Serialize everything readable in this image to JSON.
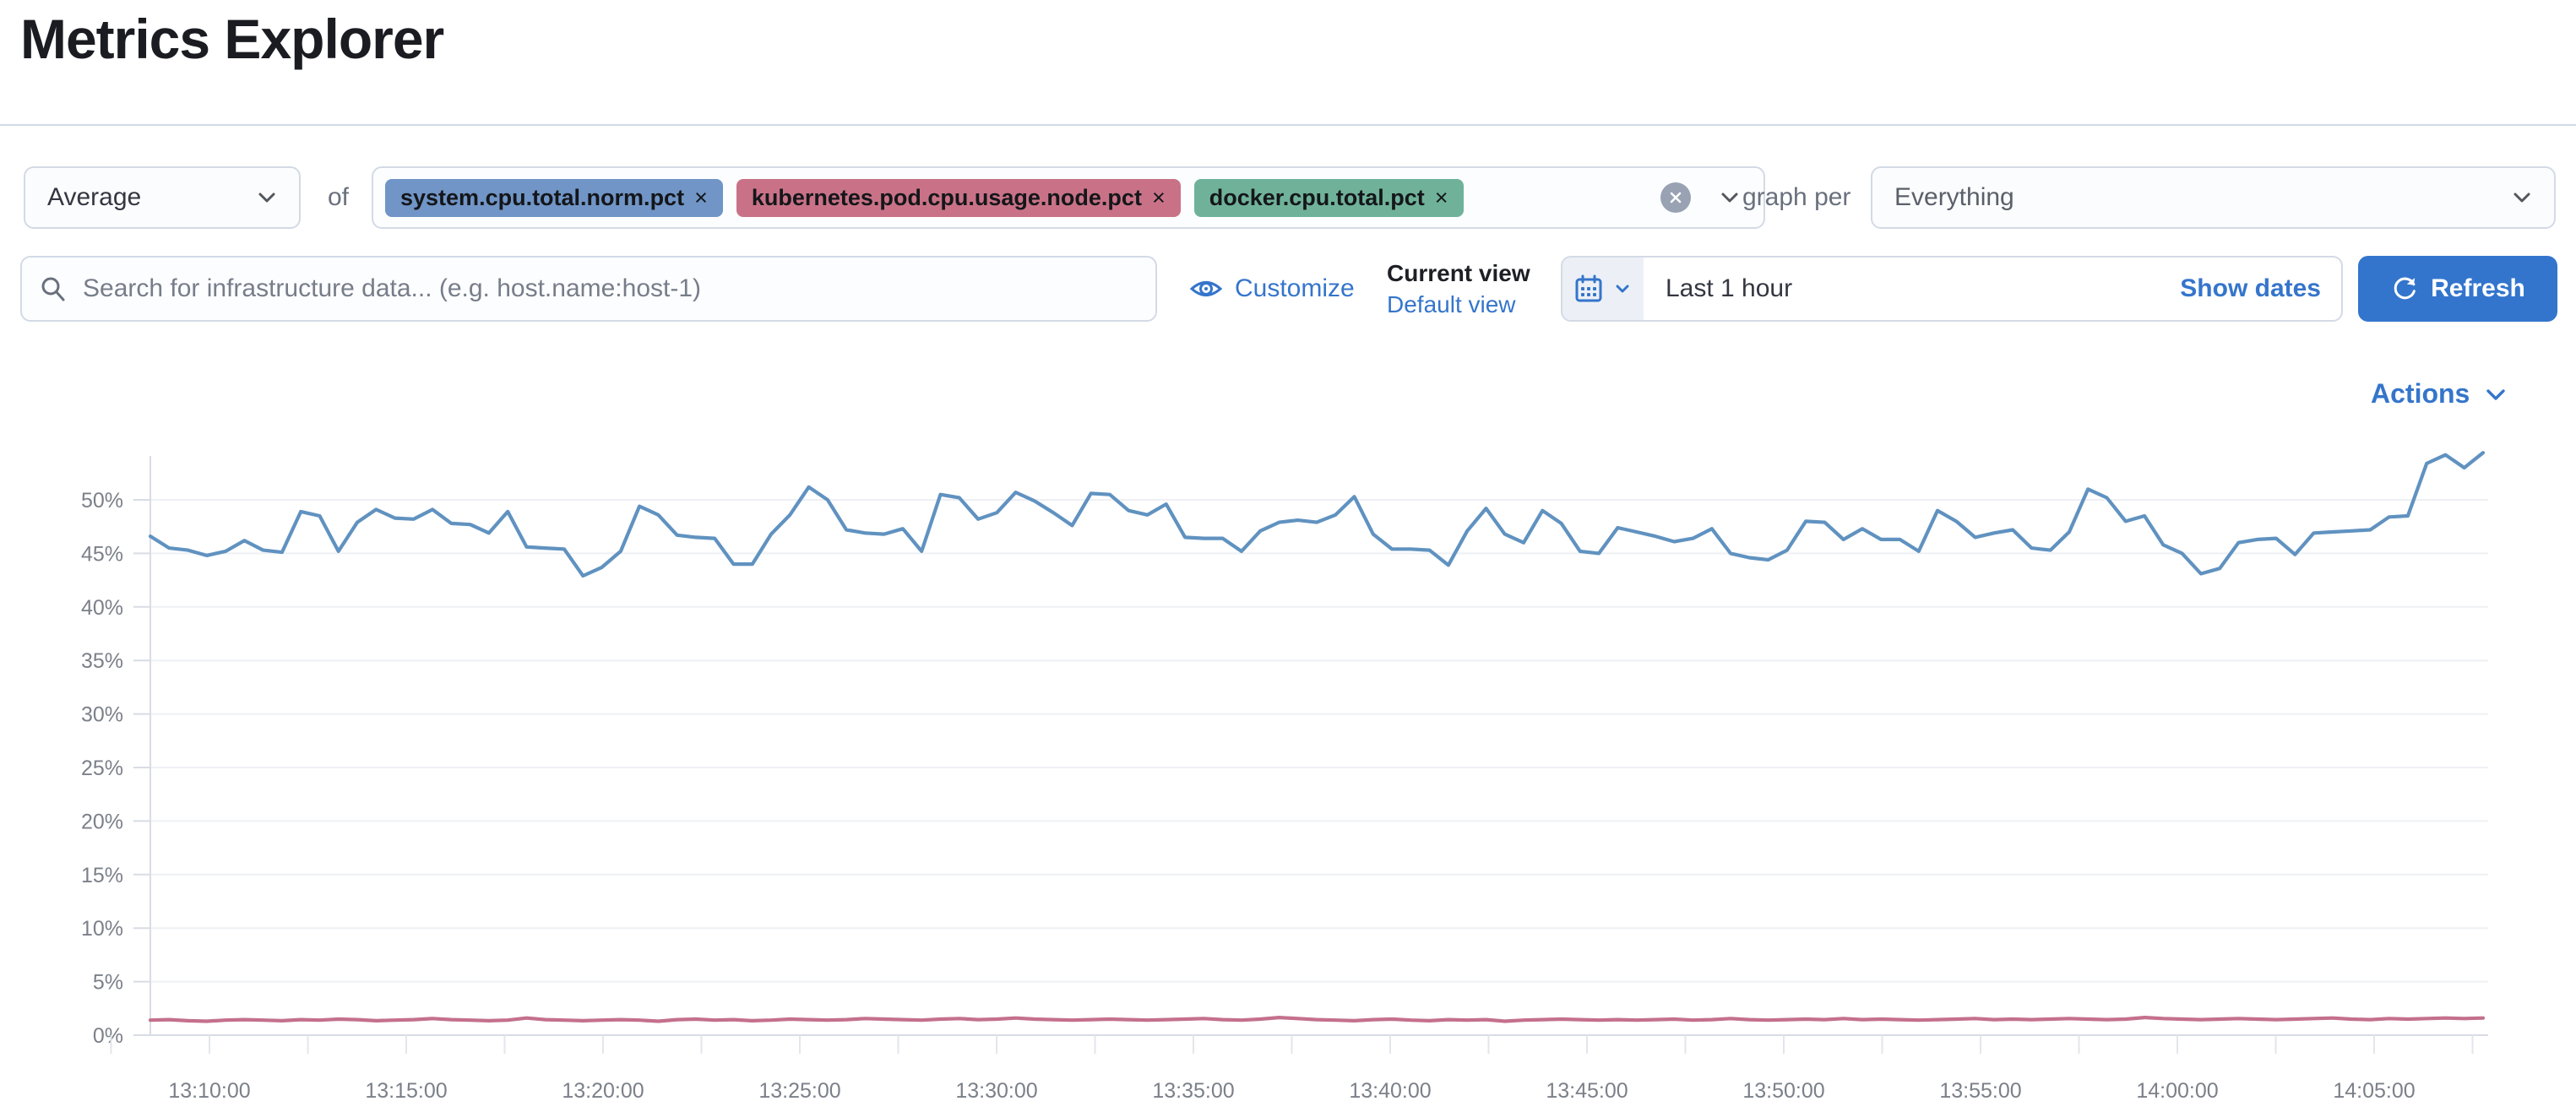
{
  "page": {
    "title": "Metrics Explorer"
  },
  "toolbar": {
    "aggregation": {
      "selected": "Average",
      "of_label": "of",
      "remove_symbol": "×",
      "metrics": [
        {
          "label": "system.cpu.total.norm.pct",
          "color": "#7095c6"
        },
        {
          "label": "kubernetes.pod.cpu.usage.node.pct",
          "color": "#c97287"
        },
        {
          "label": "docker.cpu.total.pct",
          "color": "#6fb299"
        }
      ]
    },
    "graph_per": {
      "label": "graph per",
      "selected": "Everything"
    }
  },
  "search": {
    "placeholder": "Search for infrastructure data... (e.g. host.name:host-1)"
  },
  "view_controls": {
    "customize_label": "Customize",
    "current_view_label": "Current view",
    "default_view_label": "Default view"
  },
  "time_picker": {
    "range_label": "Last 1 hour",
    "show_dates_label": "Show dates",
    "refresh_label": "Refresh"
  },
  "actions_label": "Actions",
  "colors": {
    "link_blue": "#3575cb",
    "button_blue": "#3375cd",
    "series_blue": "#6092c0",
    "series_pink": "#c4708c"
  },
  "chart_data": {
    "type": "line",
    "title": "",
    "xlabel": "",
    "ylabel": "",
    "legend": "none",
    "grid": "horizontal",
    "ylim": [
      0,
      55
    ],
    "y_ticks_pct": [
      0,
      5,
      10,
      15,
      20,
      25,
      30,
      35,
      40,
      45,
      50
    ],
    "y_tick_labels": [
      "0%",
      "5%",
      "10%",
      "15%",
      "20%",
      "25%",
      "30%",
      "35%",
      "40%",
      "45%",
      "50%"
    ],
    "x_tick_labels": [
      "13:10:00",
      "13:15:00",
      "13:20:00",
      "13:25:00",
      "13:30:00",
      "13:35:00",
      "13:40:00",
      "13:45:00",
      "13:50:00",
      "13:55:00",
      "14:00:00",
      "14:05:00"
    ],
    "x_range_approx": [
      "13:08:30",
      "14:07:50"
    ],
    "series": [
      {
        "name": "system.cpu.total.norm.pct (Average)",
        "color": "#6092c0",
        "unit": "%",
        "values": [
          46.6,
          45.5,
          45.3,
          44.8,
          45.2,
          46.2,
          45.3,
          45.1,
          48.9,
          48.5,
          45.2,
          47.9,
          49.1,
          48.3,
          48.2,
          49.1,
          47.8,
          47.7,
          46.9,
          48.9,
          45.6,
          45.5,
          45.4,
          42.9,
          43.7,
          45.2,
          49.4,
          48.6,
          46.7,
          46.5,
          46.4,
          44.0,
          44.0,
          46.8,
          48.6,
          51.2,
          50.0,
          47.2,
          46.9,
          46.8,
          47.3,
          45.2,
          50.5,
          50.2,
          48.2,
          48.8,
          50.7,
          49.9,
          48.8,
          47.6,
          50.6,
          50.5,
          49.0,
          48.6,
          49.6,
          46.5,
          46.4,
          46.4,
          45.2,
          47.1,
          47.9,
          48.1,
          47.9,
          48.6,
          50.3,
          46.8,
          45.4,
          45.4,
          45.3,
          43.9,
          47.1,
          49.2,
          46.8,
          46.0,
          49.0,
          47.8,
          45.2,
          45.0,
          47.4,
          47.0,
          46.6,
          46.1,
          46.4,
          47.3,
          45.0,
          44.6,
          44.4,
          45.3,
          48.0,
          47.9,
          46.3,
          47.3,
          46.3,
          46.3,
          45.2,
          49.0,
          48.0,
          46.5,
          46.9,
          47.2,
          45.5,
          45.3,
          47.0,
          51.0,
          50.2,
          48.0,
          48.5,
          45.8,
          45.0,
          43.1,
          43.6,
          46.0,
          46.3,
          46.4,
          44.9,
          46.9,
          47.0,
          47.1,
          47.2,
          48.4,
          48.5,
          53.4,
          54.2,
          53.0,
          54.4
        ]
      },
      {
        "name": "kubernetes.pod.cpu.usage.node.pct (Average)",
        "color": "#c4708c",
        "unit": "%",
        "values": [
          1.4,
          1.45,
          1.35,
          1.3,
          1.4,
          1.45,
          1.4,
          1.35,
          1.45,
          1.4,
          1.5,
          1.45,
          1.35,
          1.4,
          1.45,
          1.55,
          1.45,
          1.4,
          1.35,
          1.4,
          1.6,
          1.45,
          1.4,
          1.35,
          1.4,
          1.45,
          1.4,
          1.3,
          1.45,
          1.5,
          1.4,
          1.45,
          1.35,
          1.4,
          1.5,
          1.45,
          1.4,
          1.45,
          1.55,
          1.5,
          1.45,
          1.4,
          1.5,
          1.55,
          1.45,
          1.5,
          1.6,
          1.5,
          1.45,
          1.4,
          1.45,
          1.5,
          1.45,
          1.4,
          1.45,
          1.5,
          1.55,
          1.45,
          1.4,
          1.5,
          1.65,
          1.55,
          1.45,
          1.4,
          1.35,
          1.45,
          1.5,
          1.4,
          1.35,
          1.45,
          1.4,
          1.45,
          1.3,
          1.4,
          1.45,
          1.5,
          1.45,
          1.4,
          1.45,
          1.4,
          1.45,
          1.5,
          1.4,
          1.45,
          1.55,
          1.45,
          1.4,
          1.45,
          1.5,
          1.45,
          1.55,
          1.45,
          1.5,
          1.45,
          1.4,
          1.45,
          1.5,
          1.55,
          1.45,
          1.5,
          1.45,
          1.5,
          1.55,
          1.5,
          1.45,
          1.5,
          1.65,
          1.55,
          1.5,
          1.45,
          1.5,
          1.55,
          1.5,
          1.45,
          1.5,
          1.55,
          1.6,
          1.5,
          1.45,
          1.55,
          1.5,
          1.55,
          1.6,
          1.55,
          1.6
        ]
      }
    ]
  }
}
